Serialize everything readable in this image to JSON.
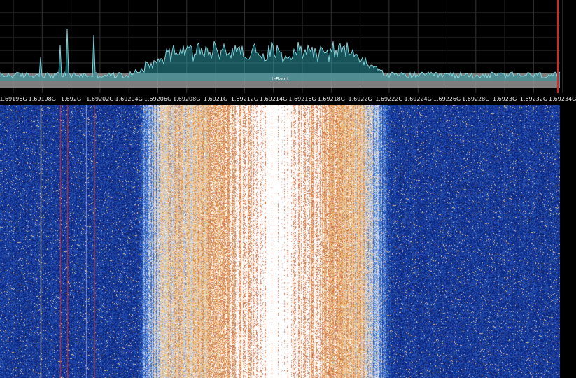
{
  "band": {
    "label": "L-Band"
  },
  "axis": {
    "ticks": [
      "1.69196G",
      "1.69198G",
      "1.692G",
      "1.69202G",
      "1.69204G",
      "1.69206G",
      "1.69208G",
      "1.6921G",
      "1.69212G",
      "1.69214G",
      "1.69216G",
      "1.69218G",
      "1.6922G",
      "1.69222G",
      "1.69224G",
      "1.69226G",
      "1.69228G",
      "1.6923G",
      "1.69232G",
      "1.69234G"
    ]
  },
  "colors": {
    "spectrum_line": "#7fd6de",
    "spectrum_fill": "#2b97a3",
    "band_overlay": "#9a9a9a",
    "grid": "#333333",
    "waterfall_low": "#0a1f78",
    "waterfall_high": "#f0c070",
    "spur_red": "#d62828",
    "spur_white": "#ffffff"
  },
  "icons": {
    "range_marker": "vertical-red-marker-icon"
  }
}
